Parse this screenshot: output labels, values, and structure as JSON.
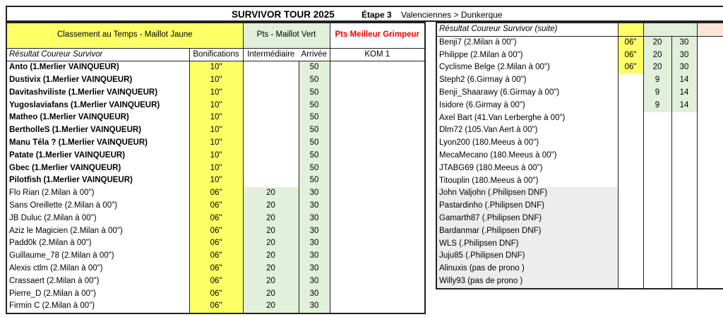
{
  "title": {
    "main": "SURVIVOR TOUR 2025",
    "stage": "Étape 3",
    "route": "Valenciennes > Dunkerque"
  },
  "left": {
    "header": {
      "jaune": "Classement au Temps - Maillot Jaune",
      "vert": "Pts - Maillot Vert",
      "grimpeur": "Pts Meilleur Grimpeur"
    },
    "subheader": {
      "resultat": "Résultat  Coureur Survivor",
      "bonif": "Bonifications",
      "inter": "Intermédiaire",
      "arrivee": "Arrivée",
      "kom": "KOM 1"
    },
    "rows": [
      {
        "name": "Anto (1.Merlier VAINQUEUR)",
        "bonif": "10\"",
        "inter": "",
        "arrivee": "50",
        "bold": true
      },
      {
        "name": "Dustivix (1.Merlier VAINQUEUR)",
        "bonif": "10\"",
        "inter": "",
        "arrivee": "50",
        "bold": true
      },
      {
        "name": "Davitashviliste (1.Merlier VAINQUEUR)",
        "bonif": "10\"",
        "inter": "",
        "arrivee": "50",
        "bold": true
      },
      {
        "name": "Yugoslaviafans (1.Merlier VAINQUEUR)",
        "bonif": "10\"",
        "inter": "",
        "arrivee": "50",
        "bold": true
      },
      {
        "name": "Matheo (1.Merlier VAINQUEUR)",
        "bonif": "10\"",
        "inter": "",
        "arrivee": "50",
        "bold": true
      },
      {
        "name": "BertholleS (1.Merlier VAINQUEUR)",
        "bonif": "10\"",
        "inter": "",
        "arrivee": "50",
        "bold": true
      },
      {
        "name": "Manu Téla ? (1.Merlier VAINQUEUR)",
        "bonif": "10\"",
        "inter": "",
        "arrivee": "50",
        "bold": true
      },
      {
        "name": "Patate (1.Merlier VAINQUEUR)",
        "bonif": "10\"",
        "inter": "",
        "arrivee": "50",
        "bold": true
      },
      {
        "name": "Gbec (1.Merlier VAINQUEUR)",
        "bonif": "10\"",
        "inter": "",
        "arrivee": "50",
        "bold": true
      },
      {
        "name": "Pilotfish (1.Merlier VAINQUEUR)",
        "bonif": "10\"",
        "inter": "",
        "arrivee": "50",
        "bold": true
      },
      {
        "name": "Flo Rian (2.Milan à 00\")",
        "bonif": "06\"",
        "inter": "20",
        "arrivee": "30"
      },
      {
        "name": "Sans Oreillette (2.Milan à 00\")",
        "bonif": "06\"",
        "inter": "20",
        "arrivee": "30"
      },
      {
        "name": "JB Duluc (2.Milan à 00\")",
        "bonif": "06\"",
        "inter": "20",
        "arrivee": "30"
      },
      {
        "name": "Aziz le Magicien (2.Milan à 00\")",
        "bonif": "06\"",
        "inter": "20",
        "arrivee": "30"
      },
      {
        "name": "Padd0k (2.Milan à 00\")",
        "bonif": "06\"",
        "inter": "20",
        "arrivee": "30"
      },
      {
        "name": "Guillaume_78 (2.Milan à 00\")",
        "bonif": "06\"",
        "inter": "20",
        "arrivee": "30"
      },
      {
        "name": "Alexis ctlm (2.Milan à 00\")",
        "bonif": "06\"",
        "inter": "20",
        "arrivee": "30"
      },
      {
        "name": "Crassaert (2.Milan à 00\")",
        "bonif": "06\"",
        "inter": "20",
        "arrivee": "30"
      },
      {
        "name": "Pierre_D (2.Milan à 00\")",
        "bonif": "06\"",
        "inter": "20",
        "arrivee": "30"
      },
      {
        "name": "Firmin C (2.Milan à 00\")",
        "bonif": "06\"",
        "inter": "20",
        "arrivee": "30"
      }
    ]
  },
  "right": {
    "header": "Résultat  Coureur Survivor (suite)",
    "rows": [
      {
        "name": "Benji7 (2.Milan à 00\")",
        "bonif": "06\"",
        "inter": "20",
        "arrivee": "30"
      },
      {
        "name": "Philippe (2.Milan à 00\")",
        "bonif": "06\"",
        "inter": "20",
        "arrivee": "30"
      },
      {
        "name": "Cyclisme Belge (2.Milan à 00\")",
        "bonif": "06\"",
        "inter": "20",
        "arrivee": "30"
      },
      {
        "name": "Steph2 (6.Girmay à 00\")",
        "bonif": "",
        "inter": "9",
        "arrivee": "14"
      },
      {
        "name": "Benji_Shaarawy (6.Girmay à 00\")",
        "bonif": "",
        "inter": "9",
        "arrivee": "14"
      },
      {
        "name": "Isidore (6.Girmay à 00\")",
        "bonif": "",
        "inter": "9",
        "arrivee": "14"
      },
      {
        "name": "Axel Bart (41.Van Lerberghe à 00\")",
        "bonif": "",
        "inter": "",
        "arrivee": ""
      },
      {
        "name": "Dlm72 (105.Van Aert à 00\")",
        "bonif": "",
        "inter": "",
        "arrivee": ""
      },
      {
        "name": "Lyon200 (180.Meeus à 00\")",
        "bonif": "",
        "inter": "",
        "arrivee": ""
      },
      {
        "name": "MecaMecano (180.Meeus à 00\")",
        "bonif": "",
        "inter": "",
        "arrivee": ""
      },
      {
        "name": "JTABG69 (180.Meeus à 00\")",
        "bonif": "",
        "inter": "",
        "arrivee": ""
      },
      {
        "name": "Titouplin (180.Meeus à 00\")",
        "bonif": "",
        "inter": "",
        "arrivee": ""
      },
      {
        "name": "John Valjohn (.Philipsen DNF)",
        "bonif": "",
        "inter": "",
        "arrivee": "",
        "grey": true
      },
      {
        "name": "Pastardinho (.Philipsen DNF)",
        "bonif": "",
        "inter": "",
        "arrivee": "",
        "grey": true
      },
      {
        "name": "Gamarth87 (.Philipsen DNF)",
        "bonif": "",
        "inter": "",
        "arrivee": "",
        "grey": true
      },
      {
        "name": "Bardanmar (.Philipsen DNF)",
        "bonif": "",
        "inter": "",
        "arrivee": "",
        "grey": true
      },
      {
        "name": "WLS (.Philipsen DNF)",
        "bonif": "",
        "inter": "",
        "arrivee": "",
        "grey": true
      },
      {
        "name": "Juju85 (.Philipsen DNF)",
        "bonif": "",
        "inter": "",
        "arrivee": "",
        "grey": true
      },
      {
        "name": "Alinuxis (pas de prono )",
        "bonif": "",
        "inter": "",
        "arrivee": "",
        "grey": true
      },
      {
        "name": "Willy93 (pas de prono )",
        "bonif": "",
        "inter": "",
        "arrivee": "",
        "grey": true
      }
    ]
  },
  "colors": {
    "jaune": "#ffff66",
    "vert": "#e2efda",
    "grimpeur_text": "#ee0000",
    "dnf_grey": "#ededed",
    "kom_header": "#fce4d6"
  }
}
